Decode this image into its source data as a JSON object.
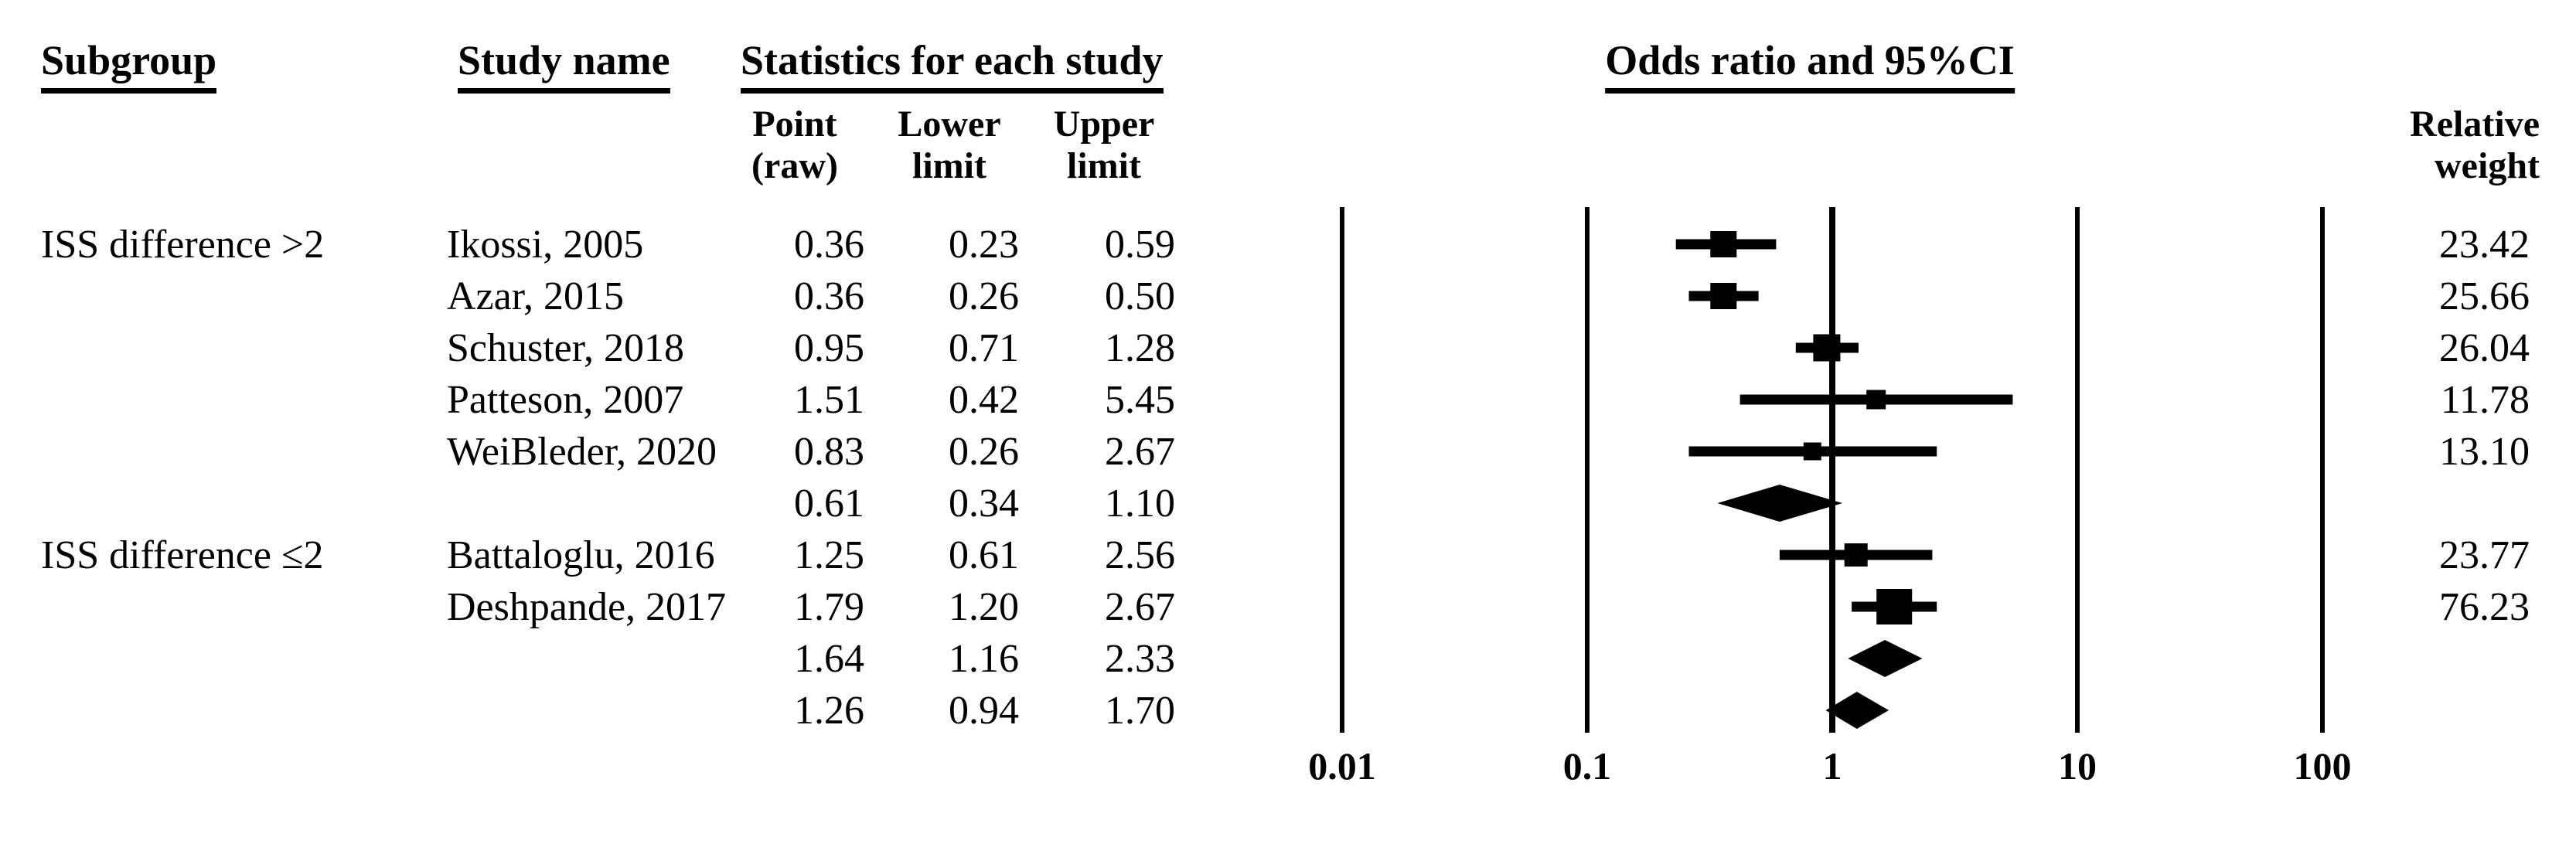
{
  "header": {
    "subgroup": "Subgroup",
    "study": "Study name",
    "stats": "Statistics for each study",
    "point": [
      "Point",
      "(raw)"
    ],
    "lower": [
      "Lower",
      "limit"
    ],
    "upper": [
      "Upper",
      "limit"
    ],
    "weight": [
      "Relative",
      "weight"
    ]
  },
  "chart_data": {
    "type": "forest",
    "title": "Odds ratio and 95%CI",
    "x_scale": "log10",
    "x_ticks": [
      0.01,
      0.1,
      1,
      10,
      100
    ],
    "x_range": [
      0.01,
      100
    ],
    "effect_label": "Odds ratio",
    "columns": [
      "Point (raw)",
      "Lower limit",
      "Upper limit",
      "Relative weight"
    ],
    "rows": [
      {
        "kind": "study",
        "subgroup": "ISS difference >2",
        "study": "Ikossi, 2005",
        "or": 0.36,
        "lower": 0.23,
        "upper": 0.59,
        "weight": 23.42,
        "marker_px": 34
      },
      {
        "kind": "study",
        "study": "Azar, 2015",
        "or": 0.36,
        "lower": 0.26,
        "upper": 0.5,
        "weight": 25.66,
        "marker_px": 34
      },
      {
        "kind": "study",
        "study": "Schuster, 2018",
        "or": 0.95,
        "lower": 0.71,
        "upper": 1.28,
        "weight": 26.04,
        "marker_px": 35
      },
      {
        "kind": "study",
        "study": "Patteson, 2007",
        "or": 1.51,
        "lower": 0.42,
        "upper": 5.45,
        "weight": 11.78,
        "marker_px": 25
      },
      {
        "kind": "study",
        "study": "WeiBleder, 2020",
        "or": 0.83,
        "lower": 0.26,
        "upper": 2.67,
        "weight": 13.1,
        "marker_px": 23
      },
      {
        "kind": "subtotal",
        "or": 0.61,
        "lower": 0.34,
        "upper": 1.1
      },
      {
        "kind": "study",
        "subgroup": "ISS difference ≤2",
        "study": "Battaloglu, 2016",
        "or": 1.25,
        "lower": 0.61,
        "upper": 2.56,
        "weight": 23.77,
        "marker_px": 30
      },
      {
        "kind": "study",
        "study": "Deshpande, 2017",
        "or": 1.79,
        "lower": 1.2,
        "upper": 2.67,
        "weight": 76.23,
        "marker_px": 46
      },
      {
        "kind": "subtotal",
        "or": 1.64,
        "lower": 1.16,
        "upper": 2.33
      },
      {
        "kind": "overall",
        "or": 1.26,
        "lower": 0.94,
        "upper": 1.7
      }
    ]
  }
}
